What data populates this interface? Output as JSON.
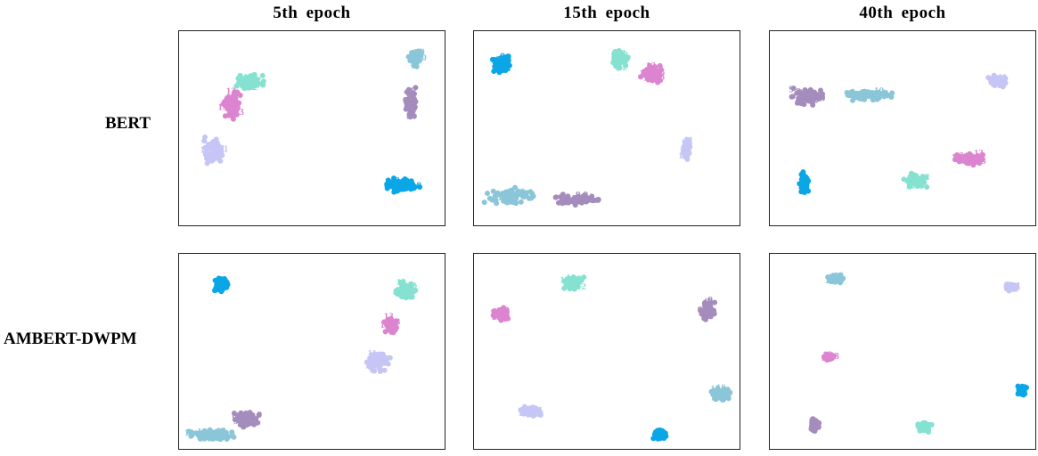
{
  "column_titles": [
    "5th  epoch",
    "15th  epoch",
    "40th  epoch"
  ],
  "row_labels": [
    "BERT",
    "AMBERT-DWPM"
  ],
  "colors": {
    "8": "#0aa6e6",
    "9": "#a48cbc",
    "10": "#8ac6d8",
    "11": "#c6c6f6",
    "12": "#86e2d0",
    "13": "#dc84d0"
  },
  "chart_data": [
    {
      "type": "scatter",
      "model": "BERT",
      "epoch": "5th  epoch",
      "clusters": [
        {
          "label": "12",
          "x": 0.27,
          "y": 0.26,
          "spread": [
            0.07,
            0.05
          ]
        },
        {
          "label": "13",
          "x": 0.2,
          "y": 0.38,
          "spread": [
            0.04,
            0.09
          ]
        },
        {
          "label": "11",
          "x": 0.13,
          "y": 0.62,
          "spread": [
            0.06,
            0.09
          ]
        },
        {
          "label": "10",
          "x": 0.89,
          "y": 0.14,
          "spread": [
            0.03,
            0.05
          ]
        },
        {
          "label": "9",
          "x": 0.87,
          "y": 0.38,
          "spread": [
            0.03,
            0.11
          ]
        },
        {
          "label": "8",
          "x": 0.83,
          "y": 0.79,
          "spread": [
            0.1,
            0.05
          ]
        }
      ]
    },
    {
      "type": "scatter",
      "model": "BERT",
      "epoch": "15th  epoch",
      "clusters": [
        {
          "label": "8",
          "x": 0.1,
          "y": 0.17,
          "spread": [
            0.05,
            0.06
          ]
        },
        {
          "label": "12",
          "x": 0.55,
          "y": 0.14,
          "spread": [
            0.04,
            0.06
          ]
        },
        {
          "label": "13",
          "x": 0.67,
          "y": 0.22,
          "spread": [
            0.05,
            0.05
          ]
        },
        {
          "label": "11",
          "x": 0.8,
          "y": 0.61,
          "spread": [
            0.02,
            0.06
          ]
        },
        {
          "label": "10",
          "x": 0.14,
          "y": 0.85,
          "spread": [
            0.12,
            0.05
          ]
        },
        {
          "label": "9",
          "x": 0.38,
          "y": 0.87,
          "spread": [
            0.11,
            0.04
          ]
        }
      ]
    },
    {
      "type": "scatter",
      "model": "BERT",
      "epoch": "40th  epoch",
      "clusters": [
        {
          "label": "9",
          "x": 0.14,
          "y": 0.34,
          "spread": [
            0.08,
            0.06
          ]
        },
        {
          "label": "10",
          "x": 0.38,
          "y": 0.33,
          "spread": [
            0.13,
            0.03
          ]
        },
        {
          "label": "11",
          "x": 0.86,
          "y": 0.26,
          "spread": [
            0.05,
            0.04
          ]
        },
        {
          "label": "8",
          "x": 0.13,
          "y": 0.78,
          "spread": [
            0.02,
            0.07
          ]
        },
        {
          "label": "12",
          "x": 0.55,
          "y": 0.77,
          "spread": [
            0.05,
            0.05
          ]
        },
        {
          "label": "13",
          "x": 0.75,
          "y": 0.66,
          "spread": [
            0.08,
            0.04
          ]
        }
      ]
    },
    {
      "type": "scatter",
      "model": "AMBERT-DWPM",
      "epoch": "5th  epoch",
      "clusters": [
        {
          "label": "8",
          "x": 0.16,
          "y": 0.16,
          "spread": [
            0.03,
            0.05
          ]
        },
        {
          "label": "12",
          "x": 0.85,
          "y": 0.19,
          "spread": [
            0.05,
            0.06
          ]
        },
        {
          "label": "13",
          "x": 0.8,
          "y": 0.37,
          "spread": [
            0.03,
            0.06
          ]
        },
        {
          "label": "11",
          "x": 0.75,
          "y": 0.55,
          "spread": [
            0.06,
            0.06
          ]
        },
        {
          "label": "9",
          "x": 0.25,
          "y": 0.85,
          "spread": [
            0.07,
            0.06
          ]
        },
        {
          "label": "10",
          "x": 0.12,
          "y": 0.93,
          "spread": [
            0.11,
            0.04
          ]
        }
      ]
    },
    {
      "type": "scatter",
      "model": "AMBERT-DWPM",
      "epoch": "15th  epoch",
      "clusters": [
        {
          "label": "12",
          "x": 0.37,
          "y": 0.15,
          "spread": [
            0.05,
            0.04
          ]
        },
        {
          "label": "13",
          "x": 0.1,
          "y": 0.31,
          "spread": [
            0.04,
            0.04
          ]
        },
        {
          "label": "9",
          "x": 0.88,
          "y": 0.29,
          "spread": [
            0.03,
            0.07
          ]
        },
        {
          "label": "10",
          "x": 0.93,
          "y": 0.72,
          "spread": [
            0.05,
            0.04
          ]
        },
        {
          "label": "11",
          "x": 0.21,
          "y": 0.81,
          "spread": [
            0.05,
            0.03
          ]
        },
        {
          "label": "8",
          "x": 0.7,
          "y": 0.93,
          "spread": [
            0.03,
            0.04
          ]
        }
      ]
    },
    {
      "type": "scatter",
      "model": "AMBERT-DWPM",
      "epoch": "40th  epoch",
      "clusters": [
        {
          "label": "10",
          "x": 0.25,
          "y": 0.13,
          "spread": [
            0.04,
            0.03
          ]
        },
        {
          "label": "11",
          "x": 0.91,
          "y": 0.17,
          "spread": [
            0.03,
            0.02
          ]
        },
        {
          "label": "13",
          "x": 0.22,
          "y": 0.53,
          "spread": [
            0.03,
            0.02
          ]
        },
        {
          "label": "8",
          "x": 0.95,
          "y": 0.7,
          "spread": [
            0.02,
            0.03
          ]
        },
        {
          "label": "9",
          "x": 0.17,
          "y": 0.88,
          "spread": [
            0.02,
            0.04
          ]
        },
        {
          "label": "12",
          "x": 0.58,
          "y": 0.89,
          "spread": [
            0.04,
            0.03
          ]
        }
      ]
    }
  ]
}
